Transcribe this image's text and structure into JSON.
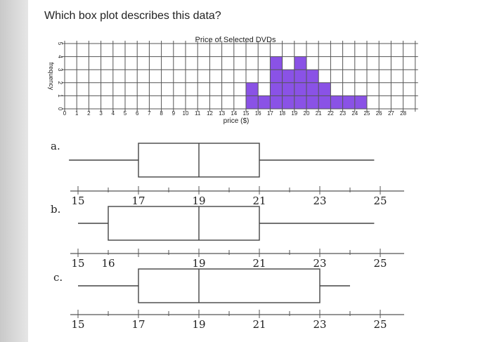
{
  "question": "Which box plot describes this data?",
  "chart_data": [
    {
      "type": "bar",
      "title": "Price of Selected DVDs",
      "xlabel": "price ($)",
      "ylabel": "frequency",
      "x_ticks": [
        "0",
        "1",
        "2",
        "3",
        "4",
        "5",
        "6",
        "7",
        "8",
        "9",
        "10",
        "11",
        "12",
        "13",
        "14",
        "15",
        "16",
        "17",
        "18",
        "19",
        "20",
        "21",
        "22",
        "23",
        "24",
        "25",
        "26",
        "27",
        "28"
      ],
      "y_ticks": [
        "0",
        "1",
        "2",
        "3",
        "4",
        "5"
      ],
      "xlim": [
        0,
        29
      ],
      "ylim": [
        0,
        5
      ],
      "grid": true,
      "categories": [
        "15",
        "16",
        "17",
        "18",
        "19",
        "20",
        "21",
        "22",
        "23",
        "24"
      ],
      "values": [
        2,
        1,
        4,
        3,
        4,
        3,
        2,
        1,
        1,
        1
      ],
      "bar_color": "#8a52e6"
    },
    {
      "type": "box",
      "option": "a.",
      "whisker_low": 14.7,
      "q1": 17,
      "median": 19,
      "q3": 21,
      "whisker_high": 24.8,
      "axis_ticks": [
        "15",
        "17",
        "19",
        "21",
        "23",
        "25"
      ]
    },
    {
      "type": "box",
      "option": "b.",
      "whisker_low": 15,
      "q1": 16,
      "median": 19,
      "q3": 21,
      "whisker_high": 24.8,
      "axis_ticks": [
        "15",
        "16",
        "19",
        "21",
        "23",
        "25"
      ]
    },
    {
      "type": "box",
      "option": "c.",
      "whisker_low": 15,
      "q1": 17,
      "median": 19,
      "q3": 23,
      "whisker_high": 24,
      "axis_ticks": [
        "15",
        "17",
        "19",
        "21",
        "23",
        "25"
      ]
    }
  ]
}
